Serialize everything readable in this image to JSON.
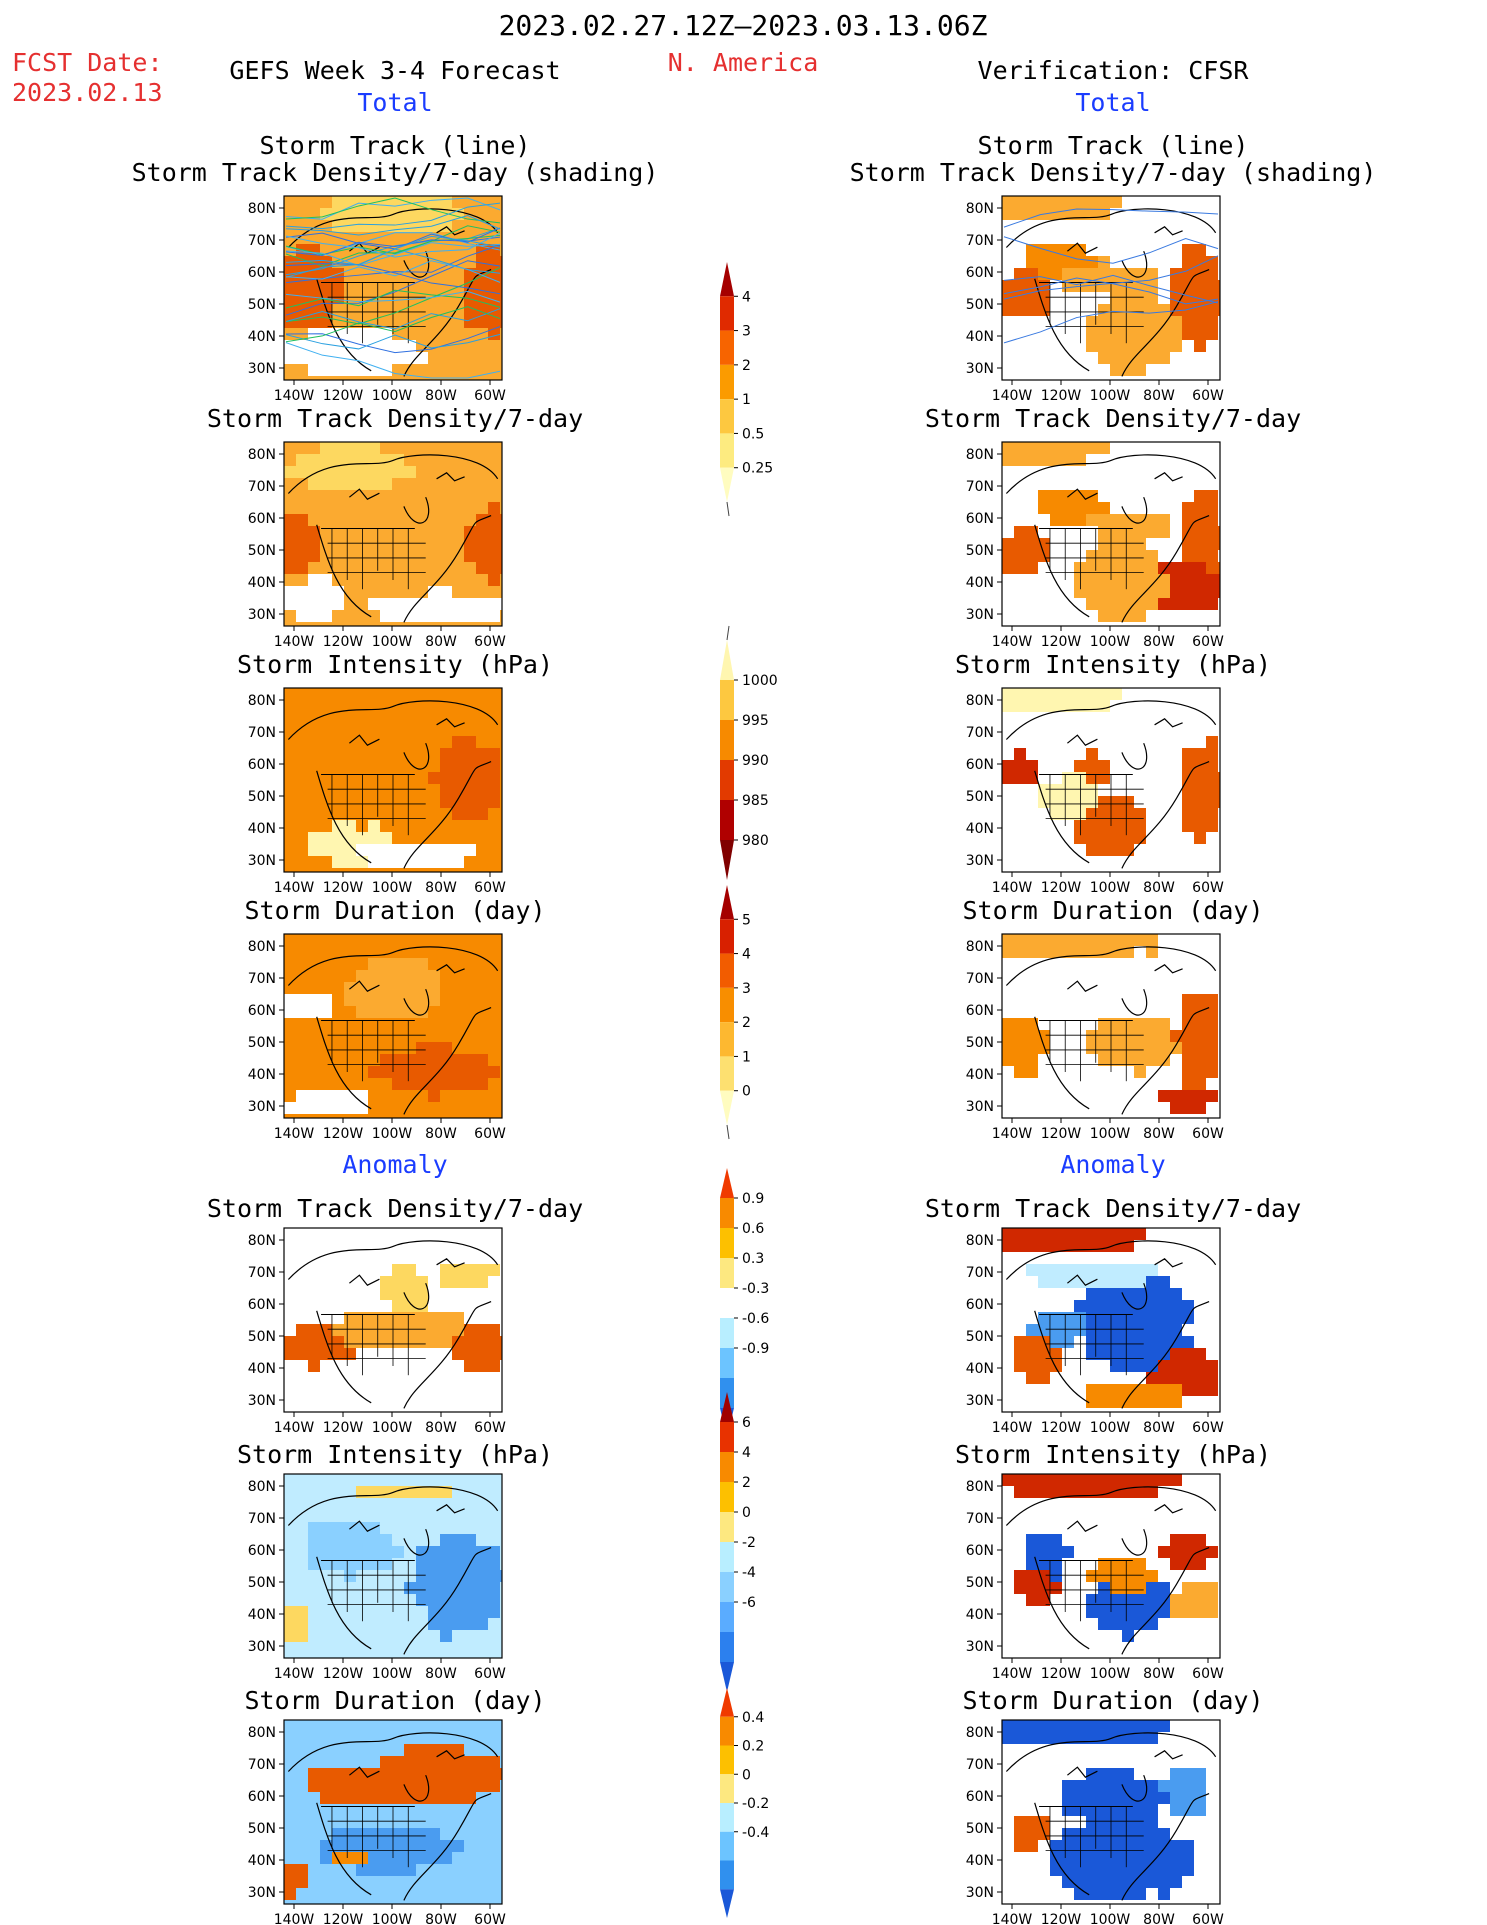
{
  "header": {
    "date_range": "2023.02.27.12Z–2023.03.13.06Z",
    "fcst_label": "FCST Date:",
    "fcst_date": "2023.02.13",
    "forecast_title": "GEFS Week 3-4 Forecast",
    "region": "N. America",
    "verification_title": "Verification: CFSR",
    "total_left": "Total",
    "total_right": "Total",
    "anomaly_left": "Anomaly",
    "anomaly_right": "Anomaly"
  },
  "panel_titles": {
    "track_line": "Storm Track (line)",
    "track_shading": "Storm Track Density/7-day (shading)",
    "density": "Storm Track Density/7-day",
    "intensity": "Storm Intensity (hPa)",
    "duration": "Storm Duration (day)"
  },
  "axes": {
    "lat_ticks": [
      "80N",
      "70N",
      "60N",
      "50N",
      "40N",
      "30N"
    ],
    "lon_ticks": [
      "140W",
      "120W",
      "100W",
      "80W",
      "60W"
    ]
  },
  "colorbars": [
    {
      "name": "density-total",
      "labels": [
        "4",
        "3",
        "2",
        "1",
        "0.5",
        "0.25"
      ],
      "colors": [
        "#a50000",
        "#e02a00",
        "#f76400",
        "#fb9b00",
        "#fdc840",
        "#fdeb80",
        "#fffcc0"
      ]
    },
    {
      "name": "intensity-total",
      "labels": [
        "1000",
        "995",
        "990",
        "985",
        "980"
      ],
      "colors": [
        "#fff6b0",
        "#fdc840",
        "#f78a00",
        "#e23a00",
        "#b00000",
        "#800000"
      ]
    },
    {
      "name": "duration-total",
      "labels": [
        "5",
        "4",
        "3",
        "2",
        "1",
        "0"
      ],
      "colors": [
        "#a50000",
        "#d82000",
        "#f25c00",
        "#f88e00",
        "#fdb830",
        "#fde070",
        "#fffcc0"
      ]
    },
    {
      "name": "density-anom",
      "labels": [
        "0.9",
        "0.6",
        "0.3",
        "-0.3",
        "-0.6",
        "-0.9"
      ],
      "colors": [
        "#f03a00",
        "#f88a00",
        "#fdc000",
        "#fde880",
        "#ffffff",
        "#b8eeff",
        "#6cc4ff",
        "#3090ee",
        "#1a58d8"
      ]
    },
    {
      "name": "intensity-anom",
      "labels": [
        "6",
        "4",
        "2",
        "0",
        "-2",
        "-4",
        "-6"
      ],
      "colors": [
        "#a00000",
        "#e83200",
        "#f88a00",
        "#fdc000",
        "#fde880",
        "#b8eeff",
        "#8ad0ff",
        "#5aacff",
        "#2c80ee",
        "#1a58d8"
      ]
    },
    {
      "name": "duration-anom",
      "labels": [
        "0.4",
        "0.2",
        "0",
        "-0.2",
        "-0.4"
      ],
      "colors": [
        "#f03a00",
        "#f88a00",
        "#fdc000",
        "#fde880",
        "#b8eeff",
        "#6cc4ff",
        "#3090ee",
        "#1a58d8"
      ]
    }
  ],
  "chart_data": [
    {
      "type": "heatmap",
      "title": "Storm Track (line) / Storm Track Density/7-day (shading)",
      "series": [
        {
          "name": "GEFS Week 3-4 Forecast"
        },
        {
          "name": "Verification: CFSR"
        }
      ]
    },
    {
      "type": "heatmap",
      "title": "Storm Track Density/7-day",
      "series": [
        {
          "name": "GEFS Week 3-4 Forecast"
        },
        {
          "name": "Verification: CFSR"
        }
      ]
    },
    {
      "type": "heatmap",
      "title": "Storm Intensity (hPa)",
      "series": [
        {
          "name": "GEFS Week 3-4 Forecast"
        },
        {
          "name": "Verification: CFSR"
        }
      ]
    },
    {
      "type": "heatmap",
      "title": "Storm Duration (day)",
      "series": [
        {
          "name": "GEFS Week 3-4 Forecast"
        },
        {
          "name": "Verification: CFSR"
        }
      ]
    },
    {
      "type": "heatmap",
      "title": "Anomaly Storm Track Density/7-day",
      "series": [
        {
          "name": "GEFS Week 3-4 Forecast"
        },
        {
          "name": "Verification: CFSR"
        }
      ]
    },
    {
      "type": "heatmap",
      "title": "Anomaly Storm Intensity (hPa)",
      "series": [
        {
          "name": "GEFS Week 3-4 Forecast"
        },
        {
          "name": "Verification: CFSR"
        }
      ]
    },
    {
      "type": "heatmap",
      "title": "Anomaly Storm Duration (day)",
      "series": [
        {
          "name": "GEFS Week 3-4 Forecast"
        },
        {
          "name": "Verification: CFSR"
        }
      ]
    }
  ]
}
